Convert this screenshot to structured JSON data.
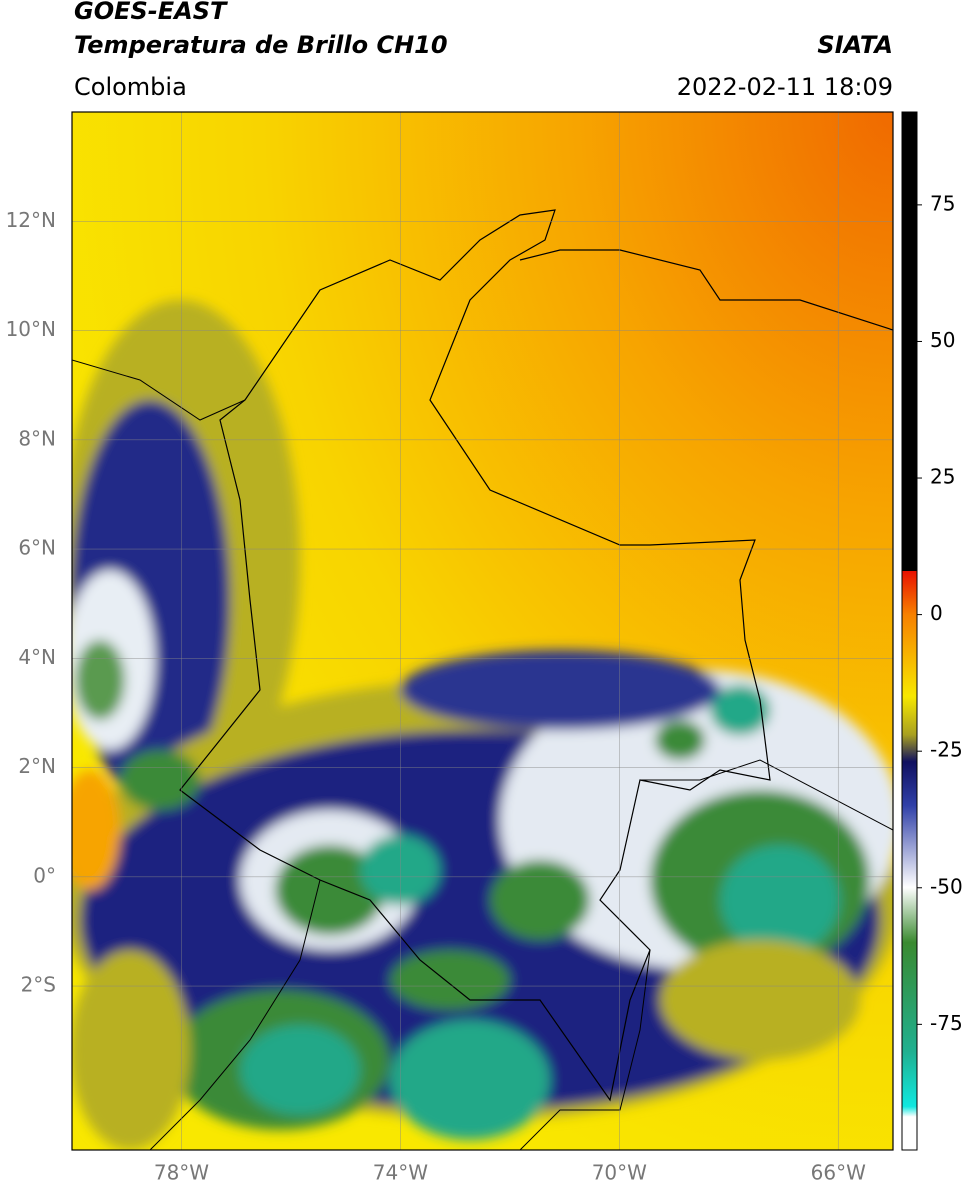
{
  "header": {
    "title": "GOES-EAST",
    "subtitle": "Temperatura de Brillo CH10",
    "source": "SIATA",
    "region": "Colombia",
    "datetime": "2022-02-11 18:09"
  },
  "chart_data": {
    "type": "map",
    "xlim": [
      -80,
      -65
    ],
    "ylim": [
      -5,
      14
    ],
    "xticks": [
      {
        "value": -78,
        "label": "78°W"
      },
      {
        "value": -74,
        "label": "74°W"
      },
      {
        "value": -70,
        "label": "70°W"
      },
      {
        "value": -66,
        "label": "66°W"
      }
    ],
    "yticks": [
      {
        "value": 12,
        "label": "12°N"
      },
      {
        "value": 10,
        "label": "10°N"
      },
      {
        "value": 8,
        "label": "8°N"
      },
      {
        "value": 6,
        "label": "6°N"
      },
      {
        "value": 4,
        "label": "4°N"
      },
      {
        "value": 2,
        "label": "2°N"
      },
      {
        "value": 0,
        "label": "0°"
      },
      {
        "value": -2,
        "label": "2°S"
      }
    ],
    "grid": true,
    "colorbar": {
      "lim": [
        -98,
        92
      ],
      "ticks": [
        75,
        50,
        25,
        0,
        -25,
        -50,
        -75
      ]
    }
  }
}
